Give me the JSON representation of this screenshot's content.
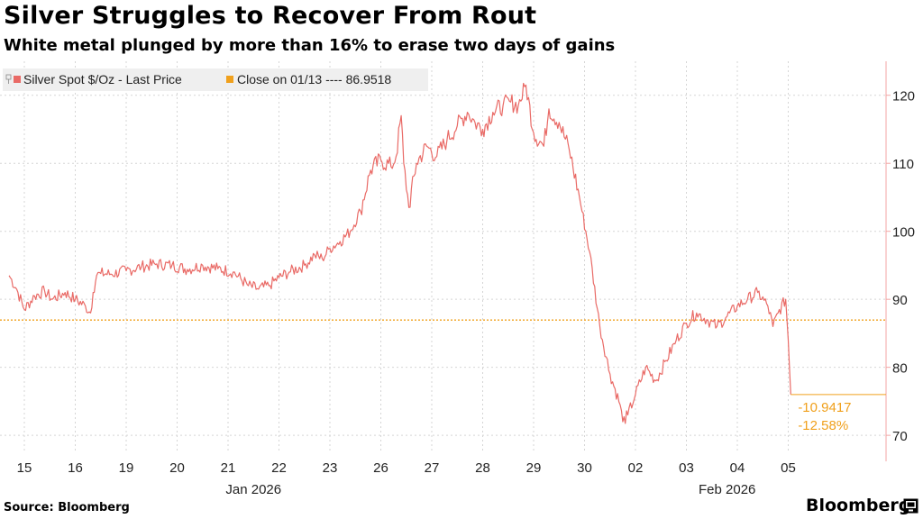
{
  "title": "Silver Struggles to Recover From Rout",
  "subtitle": "White metal plunged by more than 16% to erase two days of gains",
  "source": "Source: Bloomberg",
  "brand": "Bloomberg",
  "brand_icon": "bloomberg-terminal-icon",
  "colors": {
    "series": "#e96a66",
    "reference": "#f0a01c",
    "grid": "#d5d5d5",
    "axis": "#f3a6a4"
  },
  "chart_data": {
    "type": "line",
    "title": "Silver Struggles to Recover From Rout",
    "xlabel": "",
    "ylabel": "",
    "ylim": [
      67.5,
      125
    ],
    "yticks": [
      70,
      80,
      90,
      100,
      110,
      120
    ],
    "legend": [
      {
        "label": "Silver Spot $/Oz - Last Price",
        "color": "#e96a66"
      },
      {
        "label": "Close on 01/13 ---- 86.9518",
        "color": "#f0a01c"
      }
    ],
    "legend_position": "top-left",
    "x_tick_labels": [
      "15",
      "16",
      "19",
      "20",
      "21",
      "22",
      "23",
      "26",
      "27",
      "28",
      "29",
      "30",
      "02",
      "03",
      "04",
      "05"
    ],
    "x_group_labels": [
      {
        "label": "Jan 2026",
        "at": 4.5
      },
      {
        "label": "Feb 2026",
        "at": 13.8
      }
    ],
    "x_range": [
      -0.3,
      16.0
    ],
    "reference_line": {
      "label": "Close on 01/13",
      "value": 86.9518
    },
    "last_value": {
      "value": 76.0,
      "change": "-10.9417",
      "change_pct": "-12.58%"
    },
    "series": [
      {
        "name": "Silver Spot $/Oz - Last Price",
        "x": [
          -0.3,
          -0.15,
          0.0,
          0.2,
          0.4,
          0.55,
          0.8,
          1.0,
          1.2,
          1.3,
          1.35,
          1.42,
          1.5,
          1.7,
          2.0,
          2.3,
          2.6,
          2.9,
          3.2,
          3.5,
          3.8,
          4.1,
          4.4,
          4.6,
          4.8,
          5.0,
          5.2,
          5.5,
          5.7,
          5.85,
          6.0,
          6.2,
          6.4,
          6.6,
          6.8,
          7.0,
          7.2,
          7.3,
          7.4,
          7.45,
          7.55,
          7.7,
          7.9,
          8.1,
          8.3,
          8.5,
          8.7,
          8.85,
          9.0,
          9.2,
          9.4,
          9.55,
          9.7,
          9.85,
          10.0,
          10.2,
          10.3,
          10.5,
          10.7,
          10.9,
          11.1,
          11.3,
          11.5,
          11.7,
          11.75,
          11.85,
          12.0,
          12.2,
          12.4,
          12.6,
          12.8,
          13.0,
          13.2,
          13.4,
          13.6,
          13.8,
          14.0,
          14.2,
          14.4,
          14.6,
          14.7,
          14.8,
          14.95,
          15.0,
          15.05
        ],
        "values": [
          93.5,
          91.5,
          88.5,
          90.5,
          91.2,
          90.0,
          91.0,
          90.0,
          89.0,
          88.0,
          91.0,
          93.5,
          93.8,
          93.7,
          94.2,
          94.8,
          95.2,
          95.0,
          94.4,
          95.0,
          94.5,
          94.0,
          92.0,
          91.5,
          92.0,
          93.2,
          94.0,
          95.0,
          96.5,
          96.0,
          97.5,
          98.5,
          100.0,
          103.0,
          109.0,
          110.5,
          109.5,
          111.0,
          117.0,
          110.0,
          103.5,
          110.0,
          112.5,
          111.0,
          113.5,
          115.5,
          117.5,
          116.0,
          115.0,
          117.5,
          118.5,
          119.0,
          118.5,
          121.5,
          114.5,
          112.5,
          118.0,
          116.0,
          112.0,
          105.0,
          97.0,
          86.0,
          79.0,
          74.5,
          72.0,
          73.0,
          76.0,
          80.0,
          78.0,
          81.0,
          84.0,
          86.5,
          88.0,
          87.0,
          86.0,
          87.5,
          89.0,
          90.0,
          91.0,
          89.0,
          86.0,
          88.0,
          90.0,
          84.0,
          76.0
        ]
      }
    ]
  }
}
